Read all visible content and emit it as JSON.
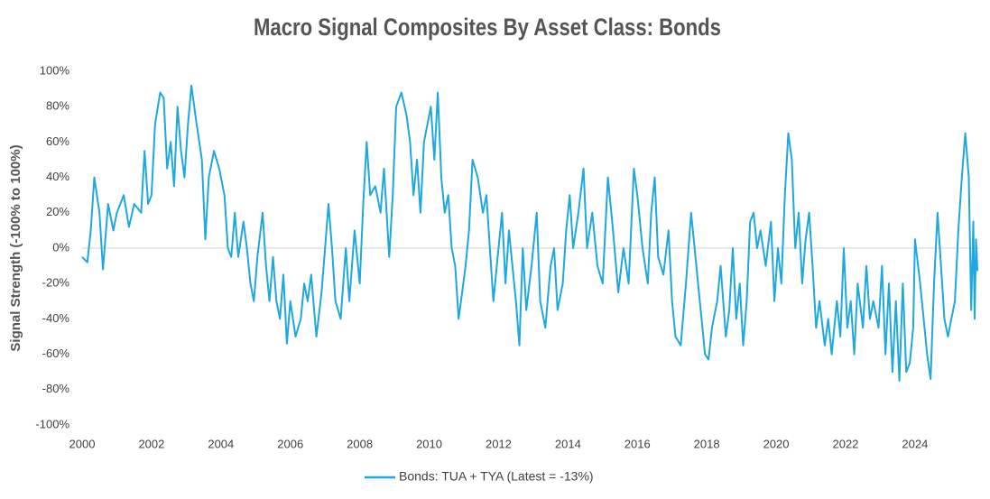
{
  "chart_data": {
    "type": "line",
    "title": "Macro Signal Composites By Asset Class: Bonds",
    "y_label": "Signal Strength (-100% to 100%)",
    "xlim": [
      2000,
      2025.85
    ],
    "xticks": [
      2000,
      2002,
      2004,
      2006,
      2008,
      2010,
      2012,
      2014,
      2016,
      2018,
      2020,
      2022,
      2024
    ],
    "ylim": [
      -100,
      100
    ],
    "yticks": [
      {
        "value": -100,
        "label": "-100%"
      },
      {
        "value": -80,
        "label": "-80%"
      },
      {
        "value": -60,
        "label": "-60%"
      },
      {
        "value": -40,
        "label": "-40%"
      },
      {
        "value": -20,
        "label": "-20%"
      },
      {
        "value": 0,
        "label": "0%"
      },
      {
        "value": 20,
        "label": "20%"
      },
      {
        "value": 40,
        "label": "40%"
      },
      {
        "value": 60,
        "label": "60%"
      },
      {
        "value": 80,
        "label": "80%"
      },
      {
        "value": 100,
        "label": "100%"
      }
    ],
    "zero_line": true,
    "legend": "bottom",
    "x": [
      2000.0,
      2000.15,
      2000.25,
      2000.35,
      2000.5,
      2000.6,
      2000.75,
      2000.9,
      2001.0,
      2001.2,
      2001.35,
      2001.5,
      2001.7,
      2001.8,
      2001.9,
      2002.0,
      2002.1,
      2002.25,
      2002.35,
      2002.45,
      2002.55,
      2002.65,
      2002.75,
      2002.85,
      2002.95,
      2003.05,
      2003.15,
      2003.3,
      2003.45,
      2003.55,
      2003.65,
      2003.8,
      2003.95,
      2004.1,
      2004.2,
      2004.3,
      2004.4,
      2004.5,
      2004.65,
      2004.75,
      2004.85,
      2004.95,
      2005.05,
      2005.2,
      2005.3,
      2005.4,
      2005.5,
      2005.6,
      2005.7,
      2005.8,
      2005.9,
      2006.0,
      2006.15,
      2006.3,
      2006.4,
      2006.5,
      2006.6,
      2006.75,
      2006.9,
      2007.0,
      2007.1,
      2007.2,
      2007.3,
      2007.45,
      2007.6,
      2007.7,
      2007.85,
      2008.0,
      2008.1,
      2008.2,
      2008.3,
      2008.45,
      2008.6,
      2008.7,
      2008.85,
      2008.95,
      2009.05,
      2009.2,
      2009.35,
      2009.45,
      2009.55,
      2009.65,
      2009.75,
      2009.85,
      2009.95,
      2010.05,
      2010.15,
      2010.25,
      2010.35,
      2010.45,
      2010.55,
      2010.65,
      2010.75,
      2010.85,
      2010.95,
      2011.05,
      2011.15,
      2011.25,
      2011.4,
      2011.55,
      2011.65,
      2011.75,
      2011.85,
      2012.0,
      2012.1,
      2012.2,
      2012.3,
      2012.4,
      2012.5,
      2012.6,
      2012.7,
      2012.8,
      2012.95,
      2013.1,
      2013.2,
      2013.35,
      2013.5,
      2013.6,
      2013.7,
      2013.85,
      2013.95,
      2014.05,
      2014.15,
      2014.3,
      2014.45,
      2014.55,
      2014.7,
      2014.85,
      2015.0,
      2015.15,
      2015.3,
      2015.45,
      2015.6,
      2015.75,
      2015.9,
      2016.0,
      2016.15,
      2016.3,
      2016.4,
      2016.5,
      2016.6,
      2016.75,
      2016.9,
      2017.0,
      2017.1,
      2017.25,
      2017.4,
      2017.55,
      2017.65,
      2017.75,
      2017.85,
      2017.95,
      2018.05,
      2018.15,
      2018.3,
      2018.4,
      2018.55,
      2018.65,
      2018.75,
      2018.85,
      2018.95,
      2019.05,
      2019.15,
      2019.25,
      2019.35,
      2019.45,
      2019.55,
      2019.7,
      2019.85,
      2019.95,
      2020.05,
      2020.15,
      2020.25,
      2020.35,
      2020.45,
      2020.55,
      2020.65,
      2020.75,
      2020.85,
      2020.95,
      2021.05,
      2021.15,
      2021.25,
      2021.4,
      2021.5,
      2021.6,
      2021.75,
      2021.85,
      2021.95,
      2022.05,
      2022.15,
      2022.25,
      2022.35,
      2022.5,
      2022.6,
      2022.7,
      2022.8,
      2022.95,
      2023.05,
      2023.15,
      2023.25,
      2023.35,
      2023.45,
      2023.55,
      2023.65,
      2023.75,
      2023.85,
      2023.95,
      2024.0,
      2024.15,
      2024.25,
      2024.35,
      2024.45,
      2024.55,
      2024.65,
      2024.75,
      2024.85,
      2024.95,
      2025.05,
      2025.15,
      2025.25,
      2025.35,
      2025.45,
      2025.55,
      2025.62,
      2025.68,
      2025.72,
      2025.76,
      2025.8
    ],
    "series": [
      {
        "name": "Bonds: TUA + TYA (Latest = -13%)",
        "color": "#1ea8e0",
        "values": [
          -5,
          -8,
          10,
          40,
          20,
          -12,
          25,
          10,
          20,
          30,
          12,
          25,
          20,
          55,
          25,
          30,
          70,
          88,
          85,
          45,
          60,
          35,
          80,
          55,
          40,
          70,
          92,
          70,
          50,
          5,
          40,
          55,
          45,
          30,
          0,
          -5,
          20,
          -5,
          15,
          0,
          -20,
          -30,
          -5,
          20,
          -10,
          -30,
          -5,
          -30,
          -40,
          -15,
          -54,
          -30,
          -50,
          -40,
          -20,
          -30,
          -15,
          -50,
          -25,
          0,
          25,
          0,
          -30,
          -40,
          0,
          -30,
          10,
          -20,
          25,
          60,
          30,
          35,
          20,
          45,
          -5,
          30,
          80,
          88,
          75,
          60,
          30,
          50,
          20,
          60,
          70,
          80,
          50,
          88,
          40,
          20,
          30,
          0,
          -10,
          -40,
          -25,
          -10,
          10,
          50,
          40,
          20,
          30,
          0,
          -30,
          0,
          20,
          -20,
          10,
          -10,
          -30,
          -55,
          0,
          -35,
          -10,
          20,
          -30,
          -45,
          -10,
          0,
          -35,
          -20,
          10,
          30,
          0,
          20,
          45,
          0,
          20,
          -10,
          -20,
          40,
          10,
          -25,
          0,
          -20,
          45,
          30,
          0,
          -20,
          20,
          40,
          -5,
          -15,
          10,
          -30,
          -50,
          -55,
          -20,
          20,
          0,
          -20,
          -40,
          -60,
          -63,
          -45,
          -30,
          -10,
          -50,
          -35,
          0,
          -40,
          -20,
          -55,
          -30,
          15,
          20,
          0,
          10,
          -10,
          15,
          -30,
          0,
          -20,
          30,
          65,
          50,
          0,
          20,
          -20,
          5,
          20,
          -10,
          -45,
          -30,
          -55,
          -40,
          -60,
          -30,
          -50,
          0,
          -45,
          -30,
          -60,
          -20,
          -45,
          -10,
          -40,
          -30,
          -45,
          -10,
          -60,
          -20,
          -70,
          -30,
          -75,
          -20,
          -70,
          -65,
          -45,
          5,
          -20,
          -40,
          -60,
          -74,
          -20,
          20,
          -10,
          -40,
          -50,
          -40,
          -30,
          10,
          40,
          65,
          40,
          -35,
          15,
          -40,
          5,
          -13
        ]
      }
    ]
  }
}
